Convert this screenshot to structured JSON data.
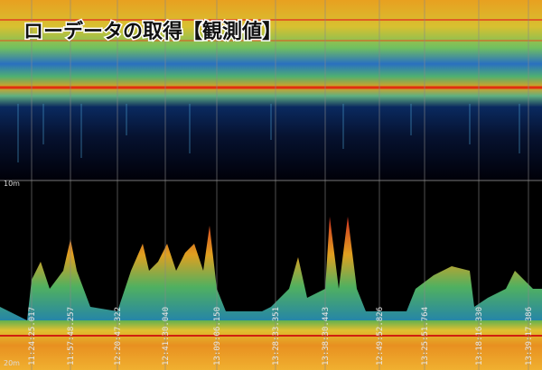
{
  "title": "ローデータの取得【観測値】",
  "depth_labels": [
    "10m",
    "20m"
  ],
  "time_labels": [
    "11:24:25.017",
    "11:57:48.257",
    "12:20:47.322",
    "12:41:30.040",
    "13:09:06.150",
    "13:28:33.351",
    "13:38:30.443",
    "12:49:52.826",
    "13:25:51.764",
    "13:18:16.330",
    "13:39:17.386"
  ]
}
